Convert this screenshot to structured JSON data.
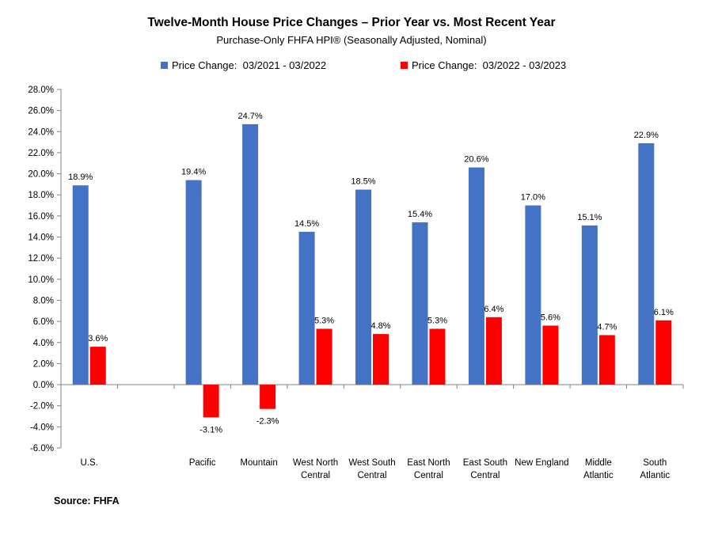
{
  "chart_data": {
    "type": "bar",
    "title": "Twelve-Month House Price Changes – Prior Year vs. Most Recent Year",
    "subtitle": "Purchase-Only FHFA HPI® (Seasonally Adjusted, Nominal)",
    "categories": [
      [
        "U.S."
      ],
      [
        ""
      ],
      [
        "Pacific"
      ],
      [
        "Mountain"
      ],
      [
        "West North",
        "Central"
      ],
      [
        "West South",
        "Central"
      ],
      [
        "East North",
        "Central"
      ],
      [
        "East South",
        "Central"
      ],
      [
        "New England"
      ],
      [
        "Middle",
        "Atlantic"
      ],
      [
        "South",
        "Atlantic"
      ]
    ],
    "series": [
      {
        "name": "Price Change:  03/2021 - 03/2022",
        "color": "#4472C4",
        "values": [
          18.9,
          null,
          19.4,
          24.7,
          14.5,
          18.5,
          15.4,
          20.6,
          17.0,
          15.1,
          22.9
        ],
        "labels": [
          "18.9%",
          "",
          "19.4%",
          "24.7%",
          "14.5%",
          "18.5%",
          "15.4%",
          "20.6%",
          "17.0%",
          "15.1%",
          "22.9%"
        ]
      },
      {
        "name": "Price Change:  03/2022 - 03/2023",
        "color": "#FF0000",
        "values": [
          3.6,
          null,
          -3.1,
          -2.3,
          5.3,
          4.8,
          5.3,
          6.4,
          5.6,
          4.7,
          6.1
        ],
        "labels": [
          "3.6%",
          "",
          "-3.1%",
          "-2.3%",
          "5.3%",
          "4.8%",
          "5.3%",
          "6.4%",
          "5.6%",
          "4.7%",
          "6.1%"
        ]
      }
    ],
    "ylim": [
      -6,
      28
    ],
    "yticks": [
      "-6.0%",
      "-4.0%",
      "-2.0%",
      "0.0%",
      "2.0%",
      "4.0%",
      "6.0%",
      "8.0%",
      "10.0%",
      "12.0%",
      "14.0%",
      "16.0%",
      "18.0%",
      "20.0%",
      "22.0%",
      "24.0%",
      "26.0%",
      "28.0%"
    ],
    "ytick_values": [
      -6,
      -4,
      -2,
      0,
      2,
      4,
      6,
      8,
      10,
      12,
      14,
      16,
      18,
      20,
      22,
      24,
      26,
      28
    ],
    "grid": false,
    "legend_position": "top"
  },
  "source": "Source: FHFA"
}
